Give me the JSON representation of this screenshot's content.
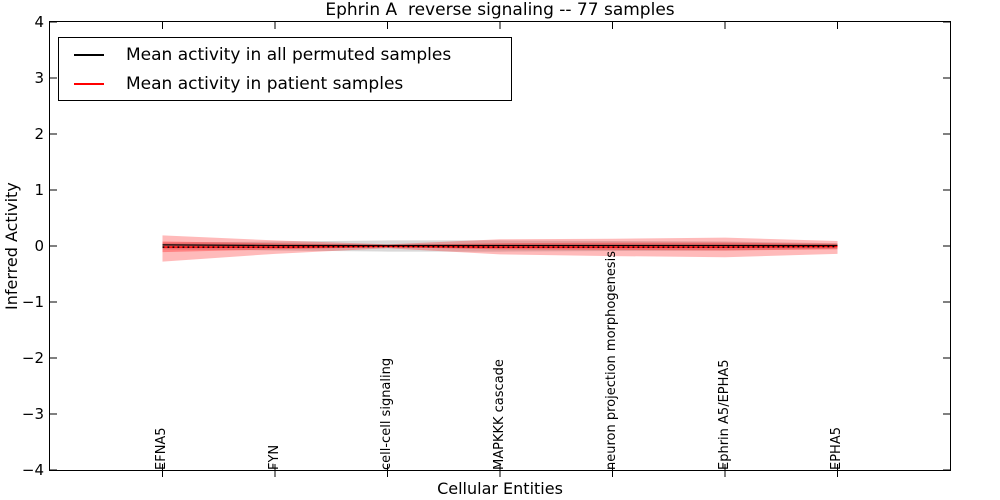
{
  "title": "Ephrin A  reverse signaling -- 77 samples",
  "legend": {
    "items": [
      {
        "label": "Mean activity in all permuted samples",
        "color": "#000000",
        "style": "solid"
      },
      {
        "label": "Mean activity in patient samples",
        "color": "#ff0000",
        "style": "solid"
      }
    ]
  },
  "axes": {
    "xlabel": "Cellular Entities",
    "ylabel": "Inferred Activity",
    "ytick_labels": [
      "4",
      "3",
      "2",
      "1",
      "0",
      "−1",
      "−2",
      "−3",
      "−4"
    ]
  },
  "chart_data": {
    "type": "line",
    "title": "Ephrin A  reverse signaling -- 77 samples",
    "xlabel": "Cellular Entities",
    "ylabel": "Inferred Activity",
    "ylim": [
      -4,
      4
    ],
    "yticks": [
      4,
      3,
      2,
      1,
      0,
      -1,
      -2,
      -3,
      -4
    ],
    "grid": false,
    "legend_position": "upper left",
    "categories": [
      "EFNA5",
      "FYN",
      "cell-cell signaling",
      "MAPKKK cascade",
      "neuron projection morphogenesis",
      "Ephrin A5/EPHA5",
      "EPHA5"
    ],
    "series": [
      {
        "name": "Mean activity in all permuted samples",
        "color": "#000000",
        "style": "solid",
        "width": 1.2,
        "values": [
          0.02,
          0.01,
          0.01,
          0.01,
          0.01,
          0.01,
          0.01
        ]
      },
      {
        "name": "Mean activity in patient samples",
        "color": "#ff0000",
        "style": "solid",
        "width": 1.4,
        "values": [
          -0.02,
          -0.02,
          -0.01,
          -0.02,
          -0.02,
          -0.02,
          -0.01
        ]
      },
      {
        "name": "dotted reference overlaying patient mean",
        "color": "#000000",
        "style": "dotted",
        "width": 1.6,
        "values": [
          -0.02,
          -0.02,
          -0.01,
          -0.02,
          -0.02,
          -0.02,
          -0.01
        ]
      }
    ],
    "bands": [
      {
        "name": "permuted samples std band",
        "color": "rgba(128,128,128,0.30)",
        "upper": [
          0.06,
          0.08,
          0.1,
          0.1,
          0.09,
          0.08,
          0.05
        ],
        "lower": [
          -0.06,
          -0.08,
          -0.1,
          -0.1,
          -0.09,
          -0.08,
          -0.05
        ]
      },
      {
        "name": "patient samples std band",
        "color": "rgba(255,0,0,0.27)",
        "upper": [
          0.19,
          0.1,
          0.03,
          0.12,
          0.13,
          0.15,
          0.09
        ],
        "lower": [
          -0.28,
          -0.14,
          -0.04,
          -0.15,
          -0.18,
          -0.2,
          -0.14
        ]
      },
      {
        "name": "patient samples inner band",
        "color": "rgba(255,0,0,0.30)",
        "upper": [
          0.08,
          0.05,
          0.02,
          0.05,
          0.06,
          0.06,
          0.04
        ],
        "lower": [
          -0.11,
          -0.06,
          -0.02,
          -0.06,
          -0.07,
          -0.08,
          -0.06
        ]
      }
    ]
  }
}
